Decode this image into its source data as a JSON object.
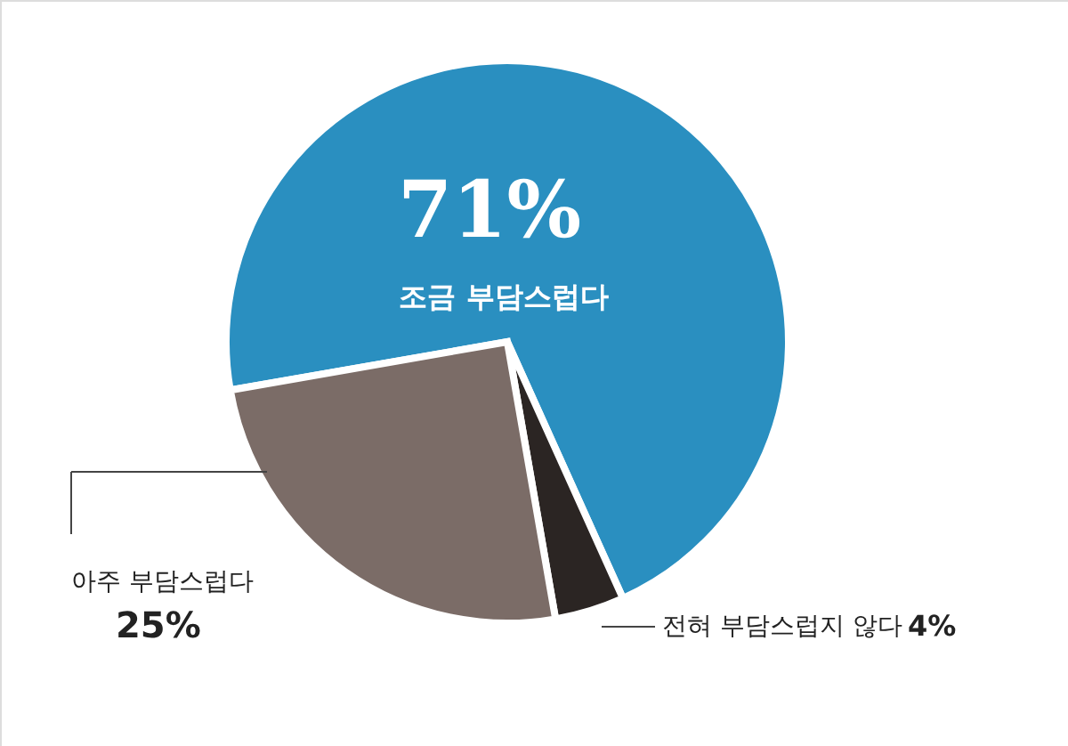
{
  "chart_data": {
    "type": "pie",
    "categories": [
      "조금 부담스럽다",
      "전혀 부담스럽지 않다",
      "아주 부담스럽다"
    ],
    "values": [
      71,
      4,
      25
    ],
    "colors": [
      "#2a8fc0",
      "#2b2523",
      "#7b6c67"
    ],
    "value_labels": [
      "71%",
      "4%",
      "25%"
    ]
  }
}
